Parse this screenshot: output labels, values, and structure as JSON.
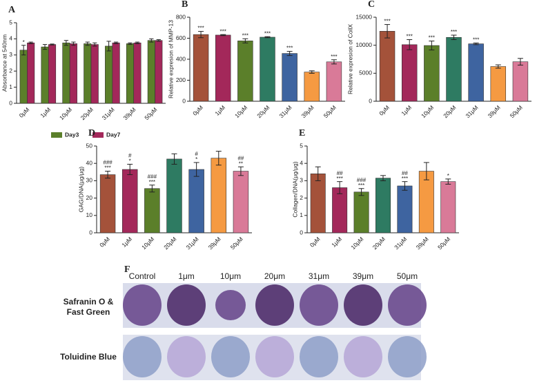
{
  "chart_data": [
    {
      "type": "bar",
      "label": "A",
      "ylabel": "Absorbance at 540nm",
      "categories": [
        "0μM",
        "1μM",
        "10μM",
        "20μM",
        "31μM",
        "39μM",
        "50μM"
      ],
      "series": [
        {
          "name": "Day3",
          "color": "#5b7f2a",
          "values": [
            3.3,
            3.5,
            3.75,
            3.7,
            3.55,
            3.7,
            3.9
          ],
          "errors": [
            0.3,
            0.15,
            0.15,
            0.1,
            0.3,
            0.05,
            0.1
          ],
          "annotations": [
            [
              "*"
            ],
            null,
            null,
            null,
            null,
            null,
            null
          ]
        },
        {
          "name": "Day7",
          "color": "#a3285a",
          "values": [
            3.75,
            3.65,
            3.7,
            3.65,
            3.75,
            3.75,
            3.9
          ],
          "errors": [
            0.05,
            0.03,
            0.1,
            0.1,
            0.05,
            0.05,
            0.05
          ]
        }
      ],
      "ylim": [
        0,
        5
      ],
      "yticks": [
        0,
        1,
        2,
        3,
        4,
        5
      ],
      "legend": "bottom"
    },
    {
      "type": "bar",
      "label": "B",
      "ylabel": "Relative expresion of MMP-13",
      "categories": [
        "0μM",
        "1μM",
        "10μM",
        "20μM",
        "31μM",
        "39μM",
        "50μM"
      ],
      "values": [
        635,
        630,
        575,
        610,
        455,
        278,
        375
      ],
      "errors": [
        30,
        5,
        20,
        5,
        20,
        12,
        20
      ],
      "colors": [
        "#a4523a",
        "#a3285a",
        "#5b7f2a",
        "#2e7b62",
        "#3e64a0",
        "#f59a42",
        "#d97a98"
      ],
      "annotations": [
        [
          "***"
        ],
        [
          "***"
        ],
        [
          "***"
        ],
        [
          "***"
        ],
        [
          "***"
        ],
        null,
        [
          "***"
        ]
      ],
      "ylim": [
        0,
        800
      ],
      "yticks": [
        0,
        200,
        400,
        600,
        800
      ]
    },
    {
      "type": "bar",
      "label": "C",
      "ylabel": "Relative expresion of CollX",
      "categories": [
        "0μM",
        "1μM",
        "10μM",
        "20μM",
        "31μM",
        "39μM",
        "50μM"
      ],
      "values": [
        12500,
        10100,
        9950,
        11400,
        10250,
        6200,
        7050
      ],
      "errors": [
        1200,
        900,
        800,
        400,
        150,
        300,
        600
      ],
      "colors": [
        "#a4523a",
        "#a3285a",
        "#5b7f2a",
        "#2e7b62",
        "#3e64a0",
        "#f59a42",
        "#d97a98"
      ],
      "annotations": [
        [
          "***"
        ],
        [
          "***"
        ],
        [
          "***"
        ],
        [
          "***"
        ],
        [
          "***"
        ],
        null,
        null
      ],
      "ylim": [
        0,
        15000
      ],
      "yticks": [
        0,
        5000,
        10000,
        15000
      ]
    },
    {
      "type": "bar",
      "label": "D",
      "ylabel": "GAG/DNA(μg/μg)",
      "categories": [
        "0μM",
        "1μM",
        "10μM",
        "20μM",
        "31μM",
        "39μM",
        "50μM"
      ],
      "values": [
        33.5,
        36.5,
        25.5,
        42.5,
        36.5,
        43,
        35.5
      ],
      "errors": [
        2,
        3,
        2,
        3,
        4,
        4,
        2.5
      ],
      "colors": [
        "#a4523a",
        "#a3285a",
        "#5b7f2a",
        "#2e7b62",
        "#3e64a0",
        "#f59a42",
        "#d97a98"
      ],
      "annotations": [
        [
          "###",
          "***"
        ],
        [
          "#",
          "*"
        ],
        [
          "###",
          "***"
        ],
        null,
        [
          "#",
          "*"
        ],
        null,
        [
          "##",
          "**"
        ]
      ],
      "ylim": [
        0,
        50
      ],
      "yticks": [
        0,
        10,
        20,
        30,
        40,
        50
      ]
    },
    {
      "type": "bar",
      "label": "E",
      "ylabel": "Collagen/DNA(μg/μg)",
      "categories": [
        "0μM",
        "1μM",
        "10μM",
        "20μM",
        "31μM",
        "39μM",
        "50μM"
      ],
      "values": [
        3.4,
        2.6,
        2.35,
        3.15,
        2.7,
        3.55,
        2.95
      ],
      "errors": [
        0.4,
        0.35,
        0.2,
        0.15,
        0.25,
        0.5,
        0.15
      ],
      "colors": [
        "#a4523a",
        "#a3285a",
        "#5b7f2a",
        "#2e7b62",
        "#3e64a0",
        "#f59a42",
        "#d97a98"
      ],
      "annotations": [
        null,
        [
          "##",
          "***"
        ],
        [
          "###",
          "***"
        ],
        null,
        [
          "##",
          "***"
        ],
        null,
        [
          "*"
        ]
      ],
      "ylim": [
        0,
        5
      ],
      "yticks": [
        0,
        1,
        2,
        3,
        4,
        5
      ]
    }
  ],
  "figure_f": {
    "label": "F",
    "columns": [
      "Control",
      "1μm",
      "10μm",
      "20μm",
      "31μm",
      "39μm",
      "50μm"
    ],
    "rows": [
      [
        "Safranin O &",
        "Fast Green"
      ],
      [
        "Toluidine Blue"
      ]
    ]
  }
}
